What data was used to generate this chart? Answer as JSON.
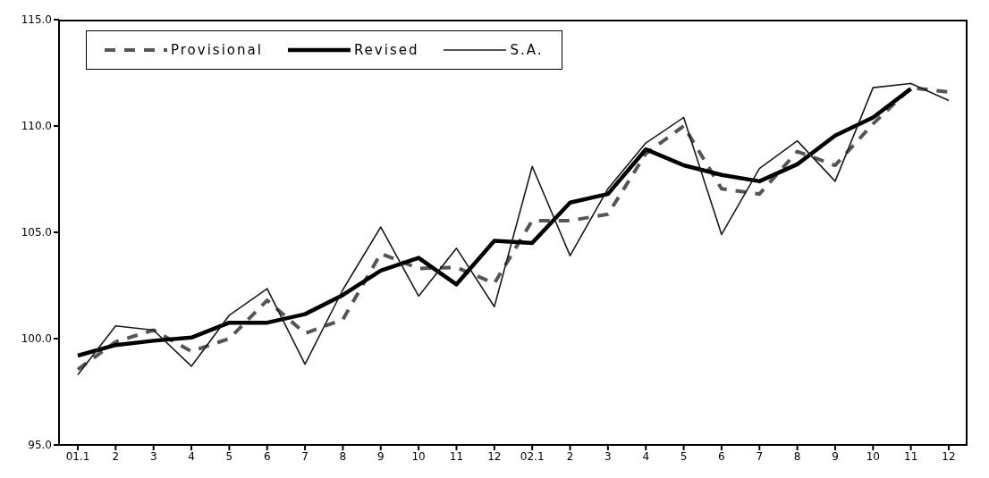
{
  "chart_data": {
    "type": "line",
    "categories": [
      "01.1",
      "2",
      "3",
      "4",
      "5",
      "6",
      "7",
      "8",
      "9",
      "10",
      "11",
      "12",
      "02.1",
      "2",
      "3",
      "4",
      "5",
      "6",
      "7",
      "8",
      "9",
      "10",
      "11",
      "12"
    ],
    "series": [
      {
        "name": "Provisional",
        "color": "#555555",
        "line_style": "dashed",
        "values": [
          98.55,
          99.85,
          100.4,
          99.4,
          100.0,
          101.8,
          100.25,
          100.9,
          104.0,
          103.3,
          103.35,
          102.6,
          105.55,
          105.55,
          105.85,
          108.7,
          110.0,
          107.05,
          106.8,
          108.8,
          108.15,
          110.1,
          111.8,
          111.6
        ]
      },
      {
        "name": "Revised",
        "color": "#000000",
        "line_style": "solid",
        "values": [
          99.2,
          99.7,
          99.9,
          100.05,
          100.75,
          100.75,
          101.15,
          102.05,
          103.2,
          103.8,
          102.55,
          104.6,
          104.5,
          106.4,
          106.8,
          108.9,
          108.15,
          107.7,
          107.4,
          108.2,
          109.55,
          110.4,
          111.75,
          null
        ]
      },
      {
        "name": "S.A.",
        "color": "#1a1a1a",
        "line_style": "solid",
        "values": [
          98.3,
          100.6,
          100.4,
          98.7,
          101.1,
          102.35,
          98.8,
          102.3,
          105.25,
          102.0,
          104.25,
          101.5,
          108.1,
          103.9,
          107.05,
          109.2,
          110.4,
          104.9,
          108.0,
          109.3,
          107.4,
          111.8,
          112.0,
          111.2
        ]
      }
    ],
    "ylim": [
      95,
      115
    ],
    "yticks": [
      {
        "value": 95,
        "label": "95.0"
      },
      {
        "value": 100,
        "label": "100.0"
      },
      {
        "value": 105,
        "label": "105.0"
      },
      {
        "value": 110,
        "label": "110.0"
      },
      {
        "value": 115,
        "label": "115.0"
      }
    ],
    "legend": "top left",
    "marker": "none",
    "grid": false
  }
}
